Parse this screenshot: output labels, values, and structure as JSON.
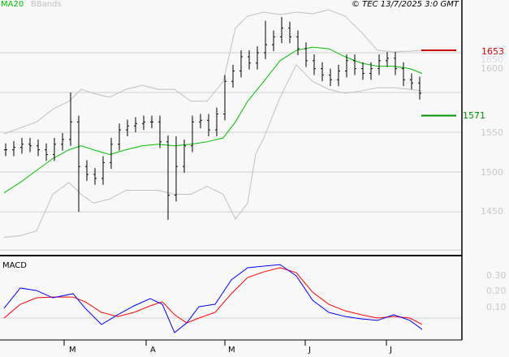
{
  "header": {
    "ma_label": "MA20",
    "bb_label": "BBands",
    "copyright": "© TEC 13/7/2025 3:0 GMT"
  },
  "colors": {
    "ma": "#00c000",
    "bb": "#c0c0c0",
    "macd": "#0000ff",
    "signal": "#ff0000",
    "resistance": "#cc0000",
    "support": "#009000"
  },
  "levels": {
    "resistance": "1653",
    "support": "1571"
  },
  "chart_data": [
    {
      "type": "ohlc",
      "title": "Price",
      "ylim": [
        1400,
        1710
      ],
      "yticks": [
        "1650",
        "1600",
        "1550",
        "1500",
        "1450"
      ],
      "xticks": [
        "M",
        "A",
        "M",
        "J",
        "J"
      ],
      "day_step": 2,
      "close": [
        1528,
        1531,
        1535,
        1533,
        1528,
        1522,
        1535,
        1541,
        1563,
        1507,
        1497,
        1492,
        1512,
        1535,
        1553,
        1558,
        1561,
        1563,
        1563,
        1538,
        1471,
        1507,
        1533,
        1563,
        1565,
        1553,
        1573,
        1614,
        1627,
        1645,
        1637,
        1650,
        1660,
        1670,
        1681,
        1670,
        1655,
        1640,
        1630,
        1622,
        1616,
        1627,
        1640,
        1630,
        1624,
        1630,
        1640,
        1643,
        1630,
        1616,
        1612,
        1599
      ],
      "high_override": {
        "8": 1600,
        "21": 1545,
        "32": 1690,
        "34": 1695
      },
      "low_override": {
        "9": 1450,
        "20": 1440
      },
      "ma20": [
        [
          0,
          1474
        ],
        [
          4,
          1487
        ],
        [
          8,
          1502
        ],
        [
          12,
          1517
        ],
        [
          16,
          1528
        ],
        [
          19,
          1533
        ],
        [
          22,
          1528
        ],
        [
          26,
          1522
        ],
        [
          30,
          1528
        ],
        [
          34,
          1533
        ],
        [
          38,
          1535
        ],
        [
          42,
          1533
        ],
        [
          46,
          1535
        ],
        [
          50,
          1538
        ],
        [
          54,
          1543
        ],
        [
          57,
          1563
        ],
        [
          60,
          1589
        ],
        [
          64,
          1614
        ],
        [
          68,
          1640
        ],
        [
          72,
          1653
        ],
        [
          76,
          1657
        ],
        [
          80,
          1655
        ],
        [
          84,
          1645
        ],
        [
          88,
          1637
        ],
        [
          92,
          1633
        ],
        [
          96,
          1633
        ],
        [
          100,
          1630
        ],
        [
          103,
          1624
        ]
      ],
      "bb_upper": [
        [
          0,
          1548
        ],
        [
          8,
          1563
        ],
        [
          12,
          1579
        ],
        [
          16,
          1589
        ],
        [
          19,
          1604
        ],
        [
          22,
          1599
        ],
        [
          26,
          1594
        ],
        [
          30,
          1604
        ],
        [
          34,
          1609
        ],
        [
          38,
          1604
        ],
        [
          42,
          1604
        ],
        [
          46,
          1589
        ],
        [
          50,
          1589
        ],
        [
          54,
          1614
        ],
        [
          57,
          1681
        ],
        [
          60,
          1696
        ],
        [
          64,
          1701
        ],
        [
          68,
          1698
        ],
        [
          72,
          1701
        ],
        [
          76,
          1699
        ],
        [
          80,
          1704
        ],
        [
          84,
          1696
        ],
        [
          88,
          1676
        ],
        [
          92,
          1653
        ],
        [
          96,
          1651
        ],
        [
          100,
          1652
        ],
        [
          103,
          1653
        ]
      ],
      "bb_lower": [
        [
          0,
          1418
        ],
        [
          4,
          1420
        ],
        [
          8,
          1426
        ],
        [
          12,
          1472
        ],
        [
          16,
          1487
        ],
        [
          19,
          1472
        ],
        [
          22,
          1461
        ],
        [
          26,
          1466
        ],
        [
          30,
          1477
        ],
        [
          34,
          1477
        ],
        [
          38,
          1477
        ],
        [
          42,
          1472
        ],
        [
          46,
          1472
        ],
        [
          50,
          1482
        ],
        [
          54,
          1472
        ],
        [
          57,
          1441
        ],
        [
          60,
          1461
        ],
        [
          62,
          1523
        ],
        [
          64,
          1543
        ],
        [
          68,
          1594
        ],
        [
          72,
          1635
        ],
        [
          76,
          1614
        ],
        [
          80,
          1604
        ],
        [
          84,
          1599
        ],
        [
          88,
          1602
        ],
        [
          92,
          1606
        ],
        [
          96,
          1606
        ],
        [
          100,
          1604
        ],
        [
          103,
          1602
        ]
      ]
    },
    {
      "type": "line",
      "title": "MACD",
      "yticks": [
        "0.30",
        "0.20",
        "0.10"
      ],
      "series": [
        {
          "name": "MACD",
          "values": [
            [
              0,
              0.062
            ],
            [
              4,
              0.19
            ],
            [
              8,
              0.174
            ],
            [
              12,
              0.128
            ],
            [
              17,
              0.154
            ],
            [
              20,
              0.062
            ],
            [
              24,
              -0.041
            ],
            [
              28,
              0.021
            ],
            [
              32,
              0.077
            ],
            [
              36,
              0.123
            ],
            [
              39,
              0.087
            ],
            [
              42,
              -0.092
            ],
            [
              45,
              -0.031
            ],
            [
              48,
              0.072
            ],
            [
              52,
              0.087
            ],
            [
              56,
              0.241
            ],
            [
              60,
              0.318
            ],
            [
              64,
              0.328
            ],
            [
              68,
              0.338
            ],
            [
              72,
              0.267
            ],
            [
              76,
              0.113
            ],
            [
              80,
              0.036
            ],
            [
              84,
              0.01
            ],
            [
              88,
              -0.005
            ],
            [
              92,
              -0.015
            ],
            [
              96,
              0.021
            ],
            [
              100,
              -0.015
            ],
            [
              103,
              -0.072
            ]
          ]
        },
        {
          "name": "Signal",
          "values": [
            [
              0,
              0
            ],
            [
              4,
              0.087
            ],
            [
              8,
              0.128
            ],
            [
              12,
              0.133
            ],
            [
              17,
              0.133
            ],
            [
              20,
              0.103
            ],
            [
              24,
              0.036
            ],
            [
              28,
              0.01
            ],
            [
              32,
              0.036
            ],
            [
              36,
              0.077
            ],
            [
              39,
              0.103
            ],
            [
              42,
              0.021
            ],
            [
              45,
              -0.031
            ],
            [
              48,
              0
            ],
            [
              52,
              0.036
            ],
            [
              56,
              0.154
            ],
            [
              60,
              0.256
            ],
            [
              64,
              0.292
            ],
            [
              68,
              0.318
            ],
            [
              72,
              0.287
            ],
            [
              76,
              0.164
            ],
            [
              80,
              0.087
            ],
            [
              84,
              0.046
            ],
            [
              88,
              0.021
            ],
            [
              92,
              0
            ],
            [
              96,
              0.01
            ],
            [
              100,
              0
            ],
            [
              103,
              -0.041
            ]
          ]
        }
      ]
    }
  ]
}
